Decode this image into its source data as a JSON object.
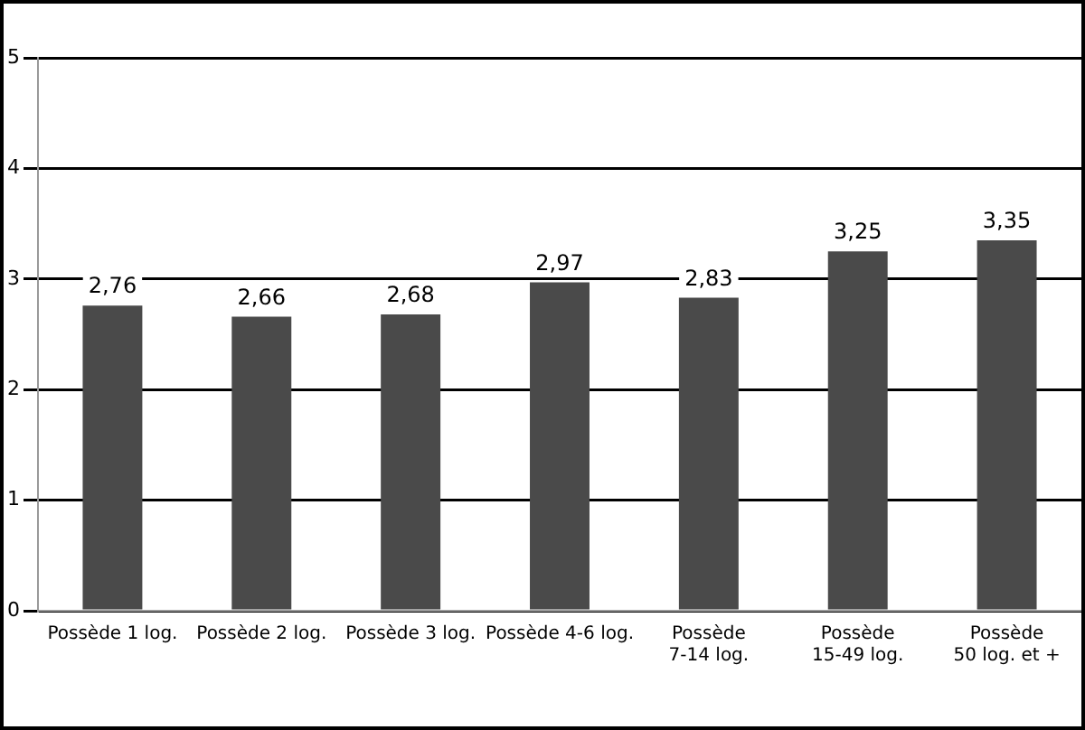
{
  "chart_data": {
    "type": "bar",
    "categories": [
      "Possède 1 log.",
      "Possède 2 log.",
      "Possède 3 log.",
      "Possède 4-6 log.",
      "Possède 7-14 log.",
      "Possède 15-49 log.",
      "Possède 50 log. et +"
    ],
    "values": [
      2.76,
      2.66,
      2.68,
      2.97,
      2.83,
      3.25,
      3.35
    ],
    "value_labels": [
      "2,76",
      "2,66",
      "2,68",
      "2,97",
      "2,83",
      "3,25",
      "3,35"
    ],
    "color": "#4a4a4a",
    "ylim": [
      0,
      5
    ],
    "yticks": [
      0,
      1,
      2,
      3,
      4,
      5
    ],
    "grid": "y",
    "legend": false
  }
}
